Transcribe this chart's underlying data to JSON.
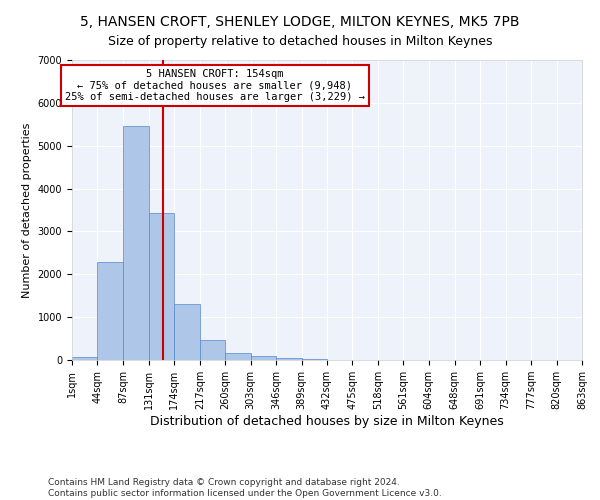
{
  "title": "5, HANSEN CROFT, SHENLEY LODGE, MILTON KEYNES, MK5 7PB",
  "subtitle": "Size of property relative to detached houses in Milton Keynes",
  "xlabel": "Distribution of detached houses by size in Milton Keynes",
  "ylabel": "Number of detached properties",
  "footer_line1": "Contains HM Land Registry data © Crown copyright and database right 2024.",
  "footer_line2": "Contains public sector information licensed under the Open Government Licence v3.0.",
  "annotation_line1": "5 HANSEN CROFT: 154sqm",
  "annotation_line2": "← 75% of detached houses are smaller (9,948)",
  "annotation_line3": "25% of semi-detached houses are larger (3,229) →",
  "bar_color": "#aec6e8",
  "bar_edge_color": "#5588cc",
  "background_color": "#eef3fb",
  "vline_color": "#cc0000",
  "vline_x": 154,
  "bin_edges": [
    1,
    44,
    87,
    131,
    174,
    217,
    260,
    303,
    346,
    389,
    432,
    475,
    518,
    561,
    604,
    648,
    691,
    734,
    777,
    820,
    863
  ],
  "bar_heights": [
    75,
    2280,
    5470,
    3440,
    1310,
    470,
    160,
    95,
    55,
    30,
    10,
    5,
    0,
    0,
    0,
    0,
    0,
    0,
    0,
    0
  ],
  "ylim": [
    0,
    7000
  ],
  "yticks": [
    0,
    1000,
    2000,
    3000,
    4000,
    5000,
    6000,
    7000
  ],
  "title_fontsize": 10,
  "subtitle_fontsize": 9,
  "xlabel_fontsize": 9,
  "ylabel_fontsize": 8,
  "tick_fontsize": 7,
  "annotation_fontsize": 7.5,
  "footer_fontsize": 6.5
}
